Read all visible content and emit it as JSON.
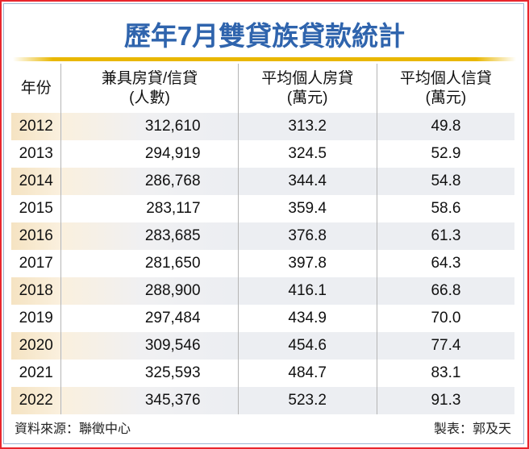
{
  "title": "歷年7月雙貸族貸款統計",
  "table": {
    "headers": [
      {
        "line1": "年份",
        "line2": ""
      },
      {
        "line1": "兼具房貸/信貸",
        "line2": "(人數)"
      },
      {
        "line1": "平均個人房貸",
        "line2": "(萬元)"
      },
      {
        "line1": "平均個人信貸",
        "line2": "(萬元)"
      }
    ],
    "rows": [
      {
        "year": "2012",
        "people": "312,610",
        "mortgage": "313.2",
        "credit": "49.8"
      },
      {
        "year": "2013",
        "people": "294,919",
        "mortgage": "324.5",
        "credit": "52.9"
      },
      {
        "year": "2014",
        "people": "286,768",
        "mortgage": "344.4",
        "credit": "54.8"
      },
      {
        "year": "2015",
        "people": "283,117",
        "mortgage": "359.4",
        "credit": "58.6"
      },
      {
        "year": "2016",
        "people": "283,685",
        "mortgage": "376.8",
        "credit": "61.3"
      },
      {
        "year": "2017",
        "people": "281,650",
        "mortgage": "397.8",
        "credit": "64.3"
      },
      {
        "year": "2018",
        "people": "288,900",
        "mortgage": "416.1",
        "credit": "66.8"
      },
      {
        "year": "2019",
        "people": "297,484",
        "mortgage": "434.9",
        "credit": "70.0"
      },
      {
        "year": "2020",
        "people": "309,546",
        "mortgage": "454.6",
        "credit": "77.4"
      },
      {
        "year": "2021",
        "people": "325,593",
        "mortgage": "484.7",
        "credit": "83.1"
      },
      {
        "year": "2022",
        "people": "345,376",
        "mortgage": "523.2",
        "credit": "91.3"
      }
    ]
  },
  "footer": {
    "source": "資料來源：聯徵中心",
    "credit": "製表：郭及天"
  },
  "colors": {
    "title": "#2f64ad",
    "rule": "#e9b700",
    "border_red": "#e8262d",
    "shade_year": "#f5e3c2",
    "shade_row": "#eceef2"
  },
  "chart_data": {
    "type": "table",
    "title": "歷年7月雙貸族貸款統計",
    "columns": [
      "年份",
      "兼具房貸/信貸(人數)",
      "平均個人房貸(萬元)",
      "平均個人信貸(萬元)"
    ],
    "categories": [
      "2012",
      "2013",
      "2014",
      "2015",
      "2016",
      "2017",
      "2018",
      "2019",
      "2020",
      "2021",
      "2022"
    ],
    "series": [
      {
        "name": "兼具房貸/信貸(人數)",
        "values": [
          312610,
          294919,
          286768,
          283117,
          283685,
          281650,
          288900,
          297484,
          309546,
          325593,
          345376
        ]
      },
      {
        "name": "平均個人房貸(萬元)",
        "values": [
          313.2,
          324.5,
          344.4,
          359.4,
          376.8,
          397.8,
          416.1,
          434.9,
          454.6,
          484.7,
          523.2
        ]
      },
      {
        "name": "平均個人信貸(萬元)",
        "values": [
          49.8,
          52.9,
          54.8,
          58.6,
          61.3,
          64.3,
          66.8,
          70.0,
          77.4,
          83.1,
          91.3
        ]
      }
    ],
    "source": "資料來源：聯徵中心",
    "credit": "製表：郭及天"
  }
}
